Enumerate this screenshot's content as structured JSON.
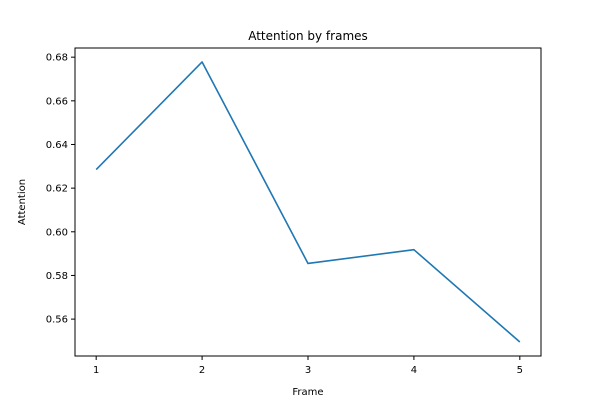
{
  "chart_data": {
    "type": "line",
    "title": "Attention by frames",
    "xlabel": "Frame",
    "ylabel": "Attention",
    "x": [
      1,
      2,
      3,
      4,
      5
    ],
    "series": [
      {
        "values": [
          0.6285,
          0.6778,
          0.5855,
          0.5918,
          0.5495
        ],
        "color": "#1f77b4"
      }
    ],
    "xticks": [
      1,
      2,
      3,
      4,
      5
    ],
    "xtick_labels": [
      "1",
      "2",
      "3",
      "4",
      "5"
    ],
    "yticks": [
      0.56,
      0.58,
      0.6,
      0.62,
      0.64,
      0.66,
      0.68
    ],
    "ytick_labels": [
      "0.56",
      "0.58",
      "0.60",
      "0.62",
      "0.64",
      "0.66",
      "0.68"
    ],
    "xlim": [
      0.8,
      5.2
    ],
    "ylim": [
      0.5431,
      0.6842
    ],
    "grid": false,
    "legend": false
  }
}
